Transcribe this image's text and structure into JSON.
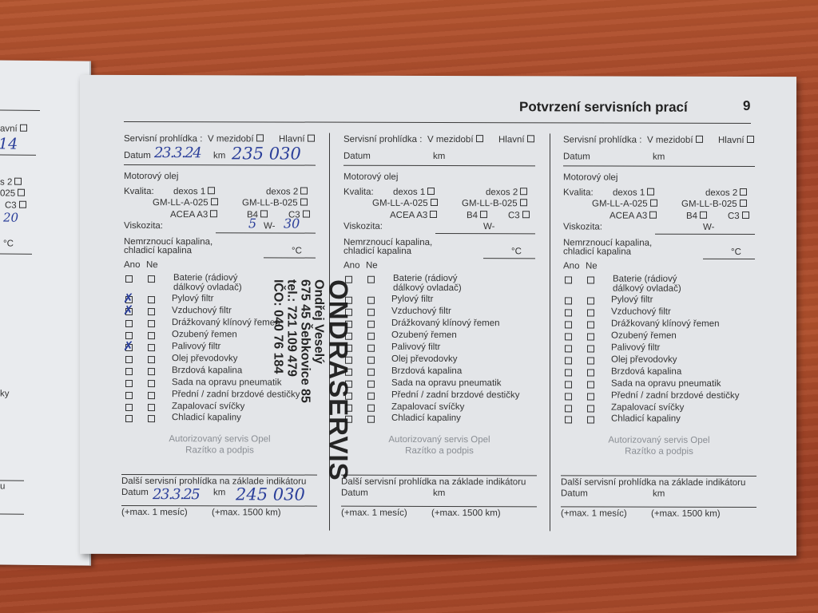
{
  "header": {
    "title": "Potvrzení servisních prací",
    "page_number": "9"
  },
  "labels": {
    "service_check": "Servisní prohlídka :",
    "interim": "V mezidobí",
    "main": "Hlavní",
    "date": "Datum",
    "km": "km",
    "engine_oil": "Motorový olej",
    "quality": "Kvalita:",
    "dexos1": "dexos 1",
    "dexos2": "dexos  2",
    "gm_a": "GM-LL-A-025",
    "gm_b": "GM-LL-B-025",
    "acea": "ACEA A3",
    "b4": "B4",
    "c3": "C3",
    "viscosity": "Viskozita:",
    "w": "W-",
    "antifreeze_1": "Nemrznoucí kapalina,",
    "antifreeze_2": "chladicí kapalina",
    "celsius": "°C",
    "yes": "Ano",
    "no": "Ne",
    "authorized_1": "Autorizovaný servis Opel",
    "authorized_2": "Razítko a podpis",
    "next_check": "Další servisní prohlídka na základe indikátoru",
    "max_month": "(+max. 1 mesíc)",
    "max_km": "(+max. 1500 km)"
  },
  "items": [
    "Baterie (rádiový",
    "dálkový ovladač)",
    "Pylový filtr",
    "Vzduchový filtr",
    "Drážkovaný klínový řemen",
    "Ozubený řemen",
    "Palivový filtr",
    "Olej převodovky",
    "Brzdová kapalina",
    "Sada na opravu pneumatik",
    "Přední / zadní brzdové destičky",
    "Zapalovací svíčky",
    "Chladicí kapaliny"
  ],
  "columns": [
    {
      "date": "23.3.24",
      "km": "235 030",
      "viscosity_1": "5",
      "viscosity_2": "30",
      "checked_yes": [
        "Pylový filtr",
        "Vzduchový filtr",
        "Palivový filtr"
      ],
      "next_date": "23.3.25",
      "next_km": "245 030"
    },
    {
      "date": "",
      "km": "",
      "viscosity_1": "",
      "viscosity_2": "",
      "checked_yes": [],
      "next_date": "",
      "next_km": ""
    },
    {
      "date": "",
      "km": "",
      "viscosity_1": "",
      "viscosity_2": "",
      "checked_yes": [],
      "next_date": "",
      "next_km": ""
    }
  ],
  "stamp": {
    "name": "ONDRASERVIS",
    "owner": "Ondřej Veselý",
    "address": "675 45 Šebkovice 85",
    "phone": "tel.: 721 109 479",
    "ico": "IČO: 040 76 184"
  },
  "left_page": {
    "frag_main": "avní",
    "frag_date": "14",
    "frag_dexos": "s  2",
    "frag_gm": "025",
    "frag_c3": "C3",
    "frag_visc": "20",
    "frag_celsius": "°C",
    "frag_ky": "ky",
    "frag_next": "u"
  }
}
